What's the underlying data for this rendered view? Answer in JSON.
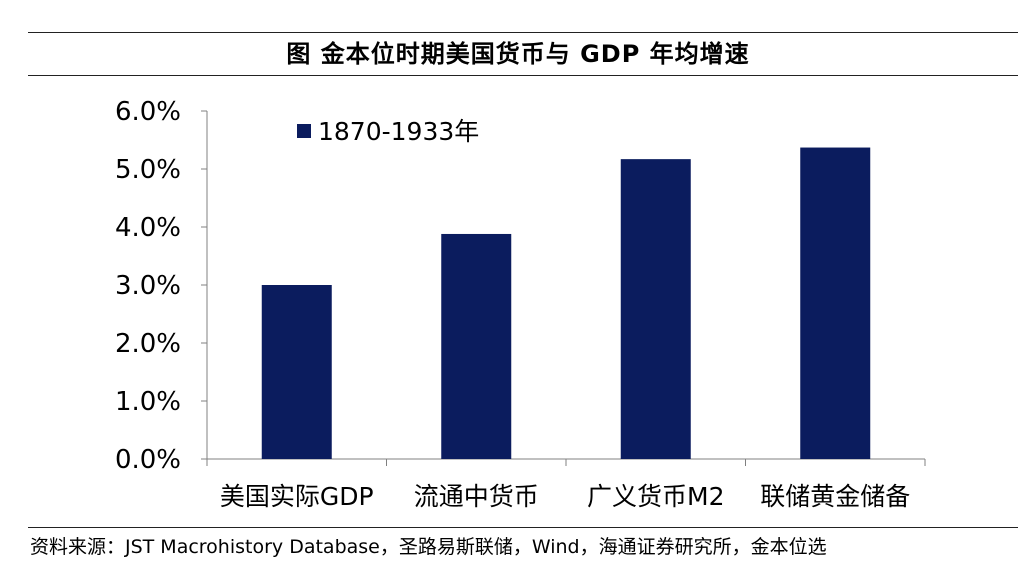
{
  "title": "图  金本位时期美国货币与 GDP 年均增速",
  "source": "资料来源：JST Macrohistory Database，圣路易斯联储，Wind，海通证券研究所，金本位选",
  "chart_data": {
    "type": "bar",
    "categories": [
      "美国实际GDP",
      "流通中货币",
      "广义货币M2",
      "联储黄金储备"
    ],
    "series": [
      {
        "name": "1870-1933年",
        "color": "#0b1c5e",
        "values": [
          3.0,
          3.88,
          5.17,
          5.37
        ]
      }
    ],
    "y_unit": "%",
    "yticks": [
      "0.0%",
      "1.0%",
      "2.0%",
      "3.0%",
      "4.0%",
      "5.0%",
      "6.0%"
    ],
    "ylim": [
      0,
      6
    ],
    "grid": false,
    "legend_position": "top-left"
  }
}
